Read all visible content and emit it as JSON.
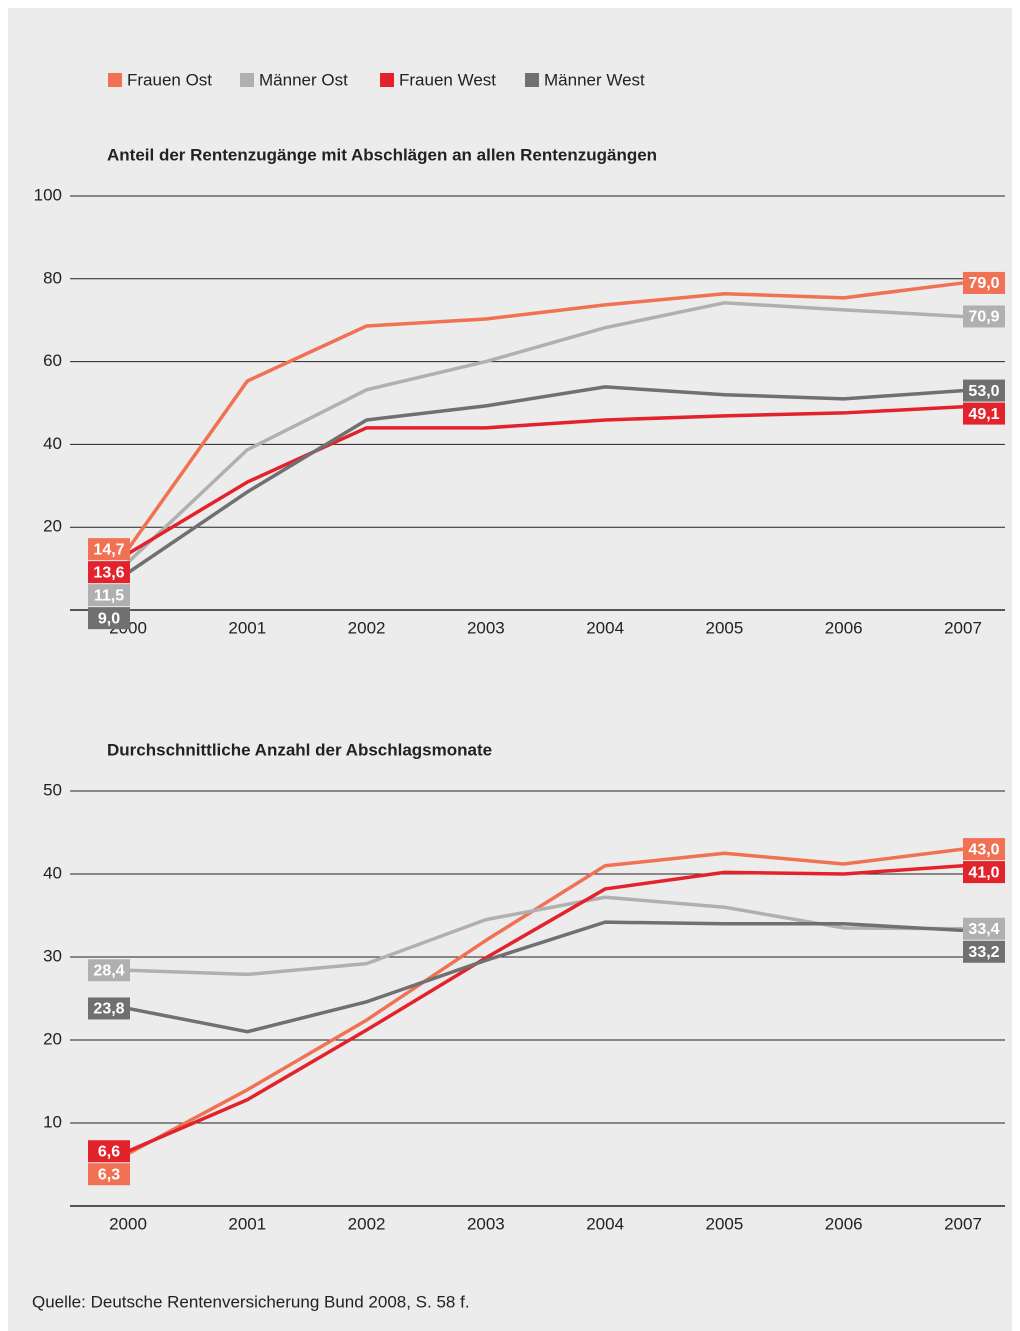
{
  "chart_data": [
    {
      "type": "line",
      "title": "Anteil der Rentenzugänge mit Abschlägen an allen Rentenzugängen",
      "categories": [
        "2000",
        "2001",
        "2002",
        "2003",
        "2004",
        "2005",
        "2006",
        "2007"
      ],
      "ylim": [
        0,
        100
      ],
      "yticks": [
        20,
        40,
        60,
        80,
        100
      ],
      "grid": true,
      "series": [
        {
          "name": "Frauen Ost",
          "color": "#f07153",
          "values": [
            14.7,
            55.3,
            68.6,
            70.3,
            73.7,
            76.4,
            75.4,
            79.0
          ],
          "value_labels": [
            "14,7",
            null,
            null,
            null,
            null,
            null,
            null,
            "79,0"
          ]
        },
        {
          "name": "Männer Ost",
          "color": "#b0b0b0",
          "values": [
            11.5,
            38.7,
            53.2,
            60.0,
            68.2,
            74.2,
            72.5,
            70.9
          ],
          "value_labels": [
            "11,5",
            null,
            null,
            null,
            null,
            null,
            null,
            "70,9"
          ]
        },
        {
          "name": "Frauen West",
          "color": "#e3232c",
          "values": [
            13.6,
            30.9,
            44.0,
            44.0,
            45.9,
            46.9,
            47.6,
            49.1
          ],
          "value_labels": [
            "13,6",
            null,
            null,
            null,
            null,
            null,
            null,
            "49,1"
          ]
        },
        {
          "name": "Männer West",
          "color": "#707070",
          "values": [
            9.0,
            28.5,
            45.9,
            49.3,
            53.9,
            52.0,
            51.0,
            53.0
          ],
          "value_labels": [
            "9,0",
            null,
            null,
            null,
            null,
            null,
            null,
            "53,0"
          ]
        }
      ]
    },
    {
      "type": "line",
      "title": "Durchschnittliche Anzahl der Abschlagsmonate",
      "categories": [
        "2000",
        "2001",
        "2002",
        "2003",
        "2004",
        "2005",
        "2006",
        "2007"
      ],
      "ylim": [
        0,
        50
      ],
      "yticks": [
        10,
        20,
        30,
        40,
        50
      ],
      "grid": true,
      "series": [
        {
          "color": "#f07153",
          "values": [
            6.3,
            14.0,
            22.4,
            32.0,
            41.0,
            42.5,
            41.2,
            43.0
          ],
          "value_labels": [
            "6,3",
            null,
            null,
            null,
            null,
            null,
            null,
            "43,0"
          ]
        },
        {
          "color": "#b0b0b0",
          "values": [
            28.4,
            27.9,
            29.2,
            34.5,
            37.2,
            36.0,
            33.5,
            33.4
          ],
          "value_labels": [
            "28,4",
            null,
            null,
            null,
            null,
            null,
            null,
            "33,4"
          ]
        },
        {
          "color": "#e3232c",
          "values": [
            6.6,
            12.8,
            21.2,
            29.9,
            38.2,
            40.2,
            40.0,
            41.0
          ],
          "value_labels": [
            "6,6",
            null,
            null,
            null,
            null,
            null,
            null,
            "41,0"
          ]
        },
        {
          "color": "#707070",
          "values": [
            23.8,
            21.0,
            24.6,
            29.6,
            34.2,
            34.0,
            34.0,
            33.2
          ],
          "value_labels": [
            "23,8",
            null,
            null,
            null,
            null,
            null,
            null,
            "33,2"
          ]
        }
      ]
    }
  ],
  "source": "Quelle: Deutsche Rentenversicherung Bund 2008, S. 58 f."
}
